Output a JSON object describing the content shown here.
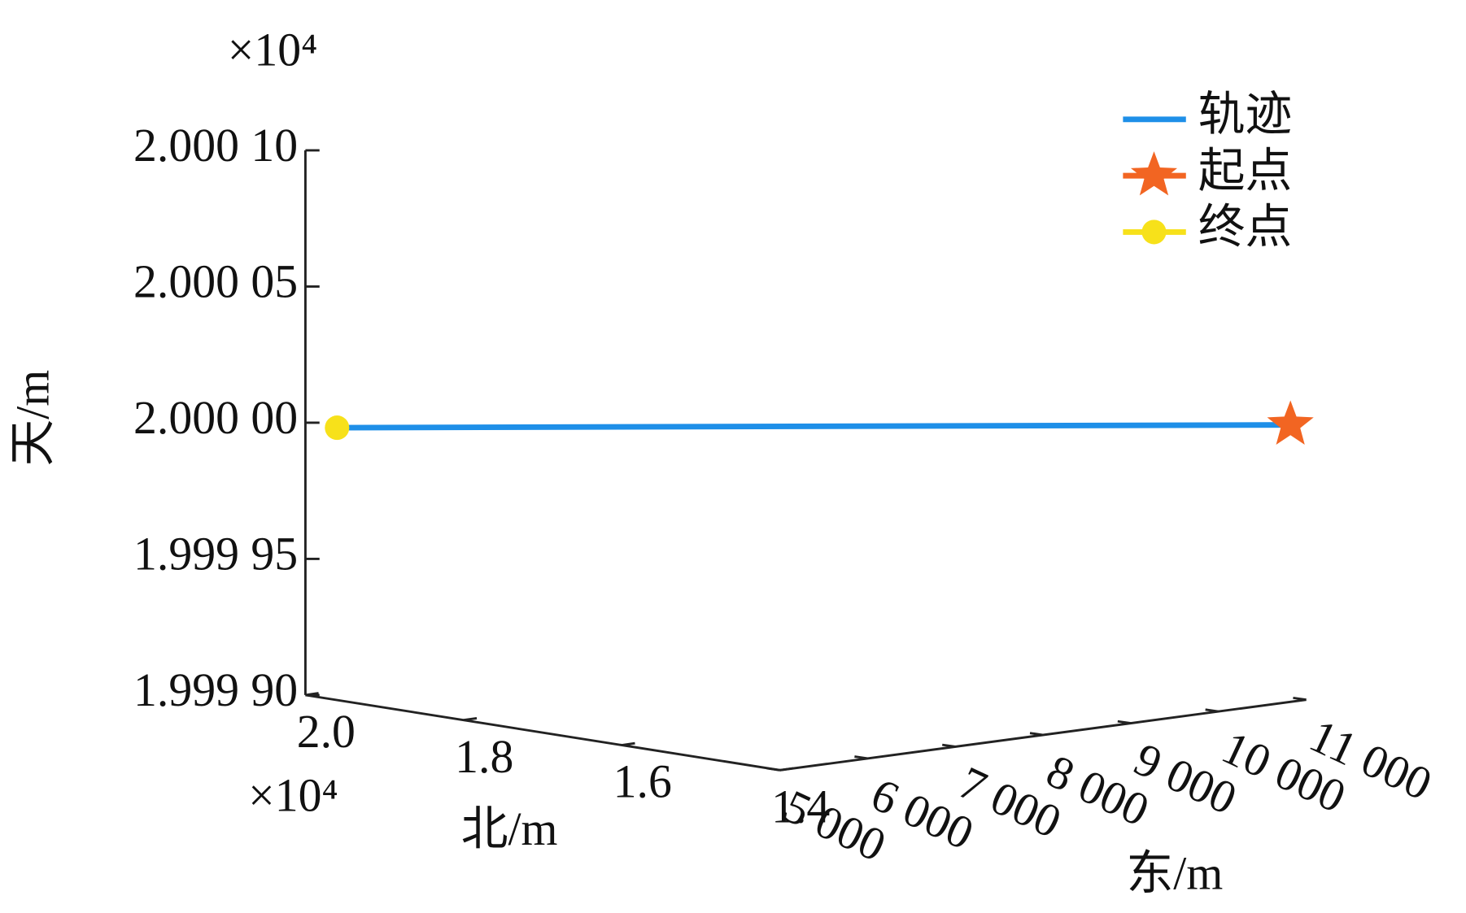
{
  "chart_data": {
    "type": "line3d",
    "xlabel": "东/m",
    "ylabel": "北/m",
    "zlabel": "天/m",
    "y_exponent_label": "×10⁴",
    "z_exponent_label": "×10⁴",
    "xlim": [
      5000,
      11000
    ],
    "xticks": [
      {
        "value": 5000,
        "label": "5 000"
      },
      {
        "value": 6000,
        "label": "6 000"
      },
      {
        "value": 7000,
        "label": "7 000"
      },
      {
        "value": 8000,
        "label": "8 000"
      },
      {
        "value": 9000,
        "label": "9 000"
      },
      {
        "value": 10000,
        "label": "10 000"
      },
      {
        "value": 11000,
        "label": "11 000"
      }
    ],
    "ylim": [
      1.4,
      2.0
    ],
    "yticks": [
      {
        "value": 2.0,
        "label": "2.0"
      },
      1.8,
      1.6,
      1.4
    ],
    "zlim": [
      1.9999,
      2.0001
    ],
    "zticks": [
      {
        "value": 2.0001,
        "label": "2.000 10"
      },
      {
        "value": 2.00005,
        "label": "2.000 05"
      },
      {
        "value": 2.0,
        "label": "2.000 00"
      },
      {
        "value": 1.99995,
        "label": "1.999 95"
      },
      {
        "value": 1.9999,
        "label": "1.999 90"
      }
    ],
    "legend": "upper right",
    "series": [
      {
        "name": "轨迹",
        "color": "#1e8fe8",
        "marker": "line",
        "x": [
          11000,
          5000
        ],
        "y": [
          1.42,
          1.96
        ],
        "z": [
          2.0,
          2.0
        ]
      },
      {
        "name": "起点",
        "color": "#f26522",
        "marker": "star",
        "x": [
          11000
        ],
        "y": [
          1.42
        ],
        "z": [
          2.0
        ]
      },
      {
        "name": "终点",
        "color": "#f7e11a",
        "marker": "circle",
        "x": [
          5000
        ],
        "y": [
          1.96
        ],
        "z": [
          2.0
        ]
      }
    ]
  }
}
